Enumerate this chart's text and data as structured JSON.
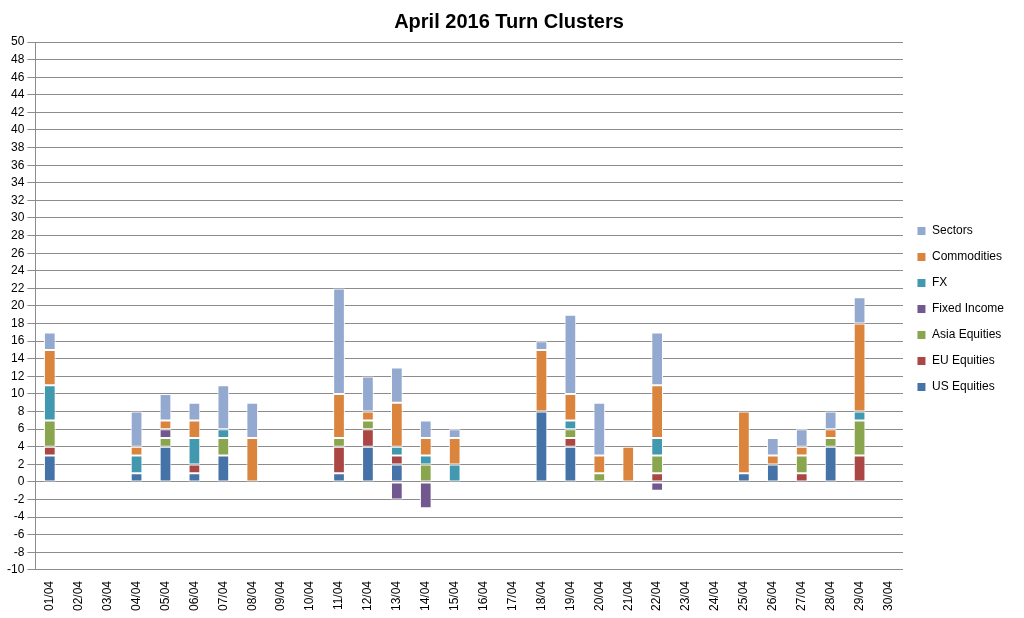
{
  "chart_data": {
    "type": "bar",
    "title": "April 2016 Turn Clusters",
    "stacked": true,
    "grid": "y",
    "legend": "right",
    "categories": [
      "01/04",
      "02/04",
      "03/04",
      "04/04",
      "05/04",
      "06/04",
      "07/04",
      "08/04",
      "09/04",
      "10/04",
      "11/04",
      "12/04",
      "13/04",
      "14/04",
      "15/04",
      "16/04",
      "17/04",
      "18/04",
      "19/04",
      "20/04",
      "21/04",
      "22/04",
      "23/04",
      "24/04",
      "25/04",
      "26/04",
      "27/04",
      "28/04",
      "29/04",
      "30/04"
    ],
    "ylim": [
      -10,
      50
    ],
    "yticks": [
      -10,
      -8,
      -6,
      -4,
      -2,
      0,
      2,
      4,
      6,
      8,
      10,
      12,
      14,
      16,
      18,
      20,
      22,
      24,
      26,
      28,
      30,
      32,
      34,
      36,
      38,
      40,
      42,
      44,
      46,
      48,
      50
    ],
    "series": [
      {
        "name": "US Equities",
        "color": "#4573a7",
        "values": [
          3,
          null,
          null,
          1,
          4,
          1,
          3,
          null,
          null,
          null,
          1,
          4,
          2,
          null,
          null,
          null,
          null,
          8,
          4,
          null,
          null,
          null,
          null,
          null,
          1,
          2,
          null,
          4,
          null,
          null
        ]
      },
      {
        "name": "EU Equities",
        "color": "#aa4643",
        "values": [
          1,
          null,
          null,
          null,
          null,
          1,
          null,
          null,
          null,
          null,
          3,
          2,
          1,
          null,
          null,
          null,
          null,
          null,
          1,
          null,
          null,
          1,
          null,
          null,
          null,
          null,
          1,
          null,
          3,
          null
        ]
      },
      {
        "name": "Asia Equities",
        "color": "#89a54e",
        "values": [
          3,
          null,
          null,
          null,
          1,
          null,
          2,
          null,
          null,
          null,
          1,
          1,
          null,
          2,
          null,
          null,
          null,
          null,
          1,
          1,
          null,
          2,
          null,
          null,
          null,
          null,
          2,
          1,
          4,
          null
        ]
      },
      {
        "name": "Fixed Income",
        "color": "#71588f",
        "values": [
          null,
          null,
          null,
          null,
          1,
          null,
          null,
          null,
          null,
          null,
          null,
          null,
          -2,
          -3,
          null,
          null,
          null,
          null,
          null,
          null,
          null,
          -1,
          null,
          null,
          null,
          null,
          null,
          null,
          null,
          null
        ]
      },
      {
        "name": "FX",
        "color": "#4198af",
        "values": [
          4,
          null,
          null,
          2,
          null,
          3,
          1,
          null,
          null,
          null,
          null,
          null,
          1,
          1,
          2,
          null,
          null,
          null,
          1,
          null,
          null,
          2,
          null,
          null,
          null,
          null,
          null,
          null,
          1,
          null
        ]
      },
      {
        "name": "Commodities",
        "color": "#db843d",
        "values": [
          4,
          null,
          null,
          1,
          1,
          2,
          null,
          5,
          null,
          null,
          5,
          1,
          5,
          2,
          3,
          null,
          null,
          7,
          3,
          2,
          4,
          6,
          null,
          null,
          7,
          1,
          1,
          1,
          10,
          null
        ]
      },
      {
        "name": "Sectors",
        "color": "#93a9cf",
        "values": [
          2,
          null,
          null,
          4,
          3,
          2,
          5,
          4,
          null,
          null,
          12,
          4,
          4,
          2,
          1,
          null,
          null,
          1,
          9,
          6,
          null,
          6,
          null,
          null,
          null,
          2,
          2,
          2,
          3,
          null
        ]
      }
    ]
  }
}
